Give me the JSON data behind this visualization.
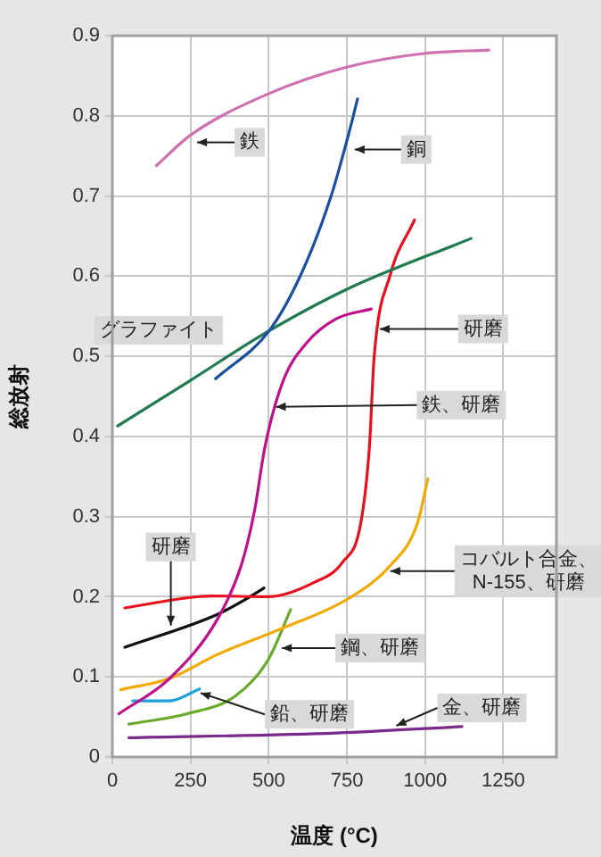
{
  "chart_data": {
    "type": "line",
    "xlabel": "温度 (°C)",
    "ylabel": "総放射",
    "xlim": [
      0,
      1420
    ],
    "ylim": [
      0,
      0.9
    ],
    "xticks": [
      0,
      250,
      500,
      750,
      1000,
      1250
    ],
    "yticks": [
      0,
      0.1,
      0.2,
      0.3,
      0.4,
      0.5,
      0.6,
      0.7,
      0.8,
      0.9
    ],
    "grid": true,
    "legend": false,
    "marker": "none",
    "line_style": "solid",
    "series": [
      {
        "color": "#d070b0",
        "x": [
          141,
          250,
          502,
          752,
          1000,
          1204
        ],
        "values": [
          0.738,
          0.776,
          0.828,
          0.861,
          0.878,
          0.882
        ]
      },
      {
        "color": "#1a4fa0",
        "x": [
          330,
          502,
          603,
          698,
          752,
          784
        ],
        "values": [
          0.472,
          0.532,
          0.602,
          0.698,
          0.772,
          0.821
        ]
      },
      {
        "color": "#1f7a50",
        "x": [
          17,
          250,
          502,
          752,
          1147
        ],
        "values": [
          0.413,
          0.47,
          0.532,
          0.584,
          0.647
        ]
      },
      {
        "color": "#c0108c",
        "x": [
          21,
          183,
          336,
          412,
          454,
          488,
          546,
          622,
          717,
          828
        ],
        "values": [
          0.054,
          0.098,
          0.172,
          0.239,
          0.306,
          0.387,
          0.469,
          0.517,
          0.547,
          0.559
        ]
      },
      {
        "color": "#e8101e",
        "x": [
          40,
          317,
          498,
          641,
          736,
          794,
          822,
          837,
          889,
          966
        ],
        "values": [
          0.186,
          0.201,
          0.2,
          0.217,
          0.243,
          0.291,
          0.387,
          0.498,
          0.602,
          0.67
        ]
      },
      {
        "color": "#111111",
        "x": [
          40,
          336,
          431,
          485
        ],
        "values": [
          0.137,
          0.178,
          0.198,
          0.211
        ]
      },
      {
        "color": "#f5a800",
        "x": [
          27,
          183,
          336,
          527,
          756,
          889,
          975,
          1009
        ],
        "values": [
          0.084,
          0.098,
          0.128,
          0.158,
          0.198,
          0.239,
          0.291,
          0.347
        ]
      },
      {
        "color": "#6aaa2a",
        "x": [
          53,
          240,
          393,
          498,
          570
        ],
        "values": [
          0.041,
          0.054,
          0.076,
          0.121,
          0.184
        ]
      },
      {
        "color": "#1aa0dc",
        "x": [
          65,
          183,
          279
        ],
        "values": [
          0.07,
          0.07,
          0.085
        ]
      },
      {
        "color": "#7a2a8a",
        "x": [
          53,
          717,
          1118
        ],
        "values": [
          0.024,
          0.03,
          0.038
        ]
      }
    ],
    "annotations": [
      {
        "text": "鉄",
        "x": 271,
        "y": 0.767
      },
      {
        "text": "銅",
        "x": 775,
        "y": 0.758
      },
      "グラファイト",
      {
        "text": "研磨",
        "x": 855,
        "y": 0.534
      },
      {
        "text": "鉄、研磨",
        "x": 523,
        "y": 0.437
      },
      {
        "text": "研磨",
        "x": 187,
        "y": 0.164
      },
      {
        "text": "コバルト合金、\nN-155、研磨",
        "x": 889,
        "y": 0.232
      },
      {
        "text": "鋼、研磨",
        "x": 542,
        "y": 0.136
      },
      {
        "text": "鉛、研磨",
        "x": 282,
        "y": 0.08
      },
      {
        "text": "金、研磨",
        "x": 908,
        "y": 0.039
      }
    ]
  }
}
